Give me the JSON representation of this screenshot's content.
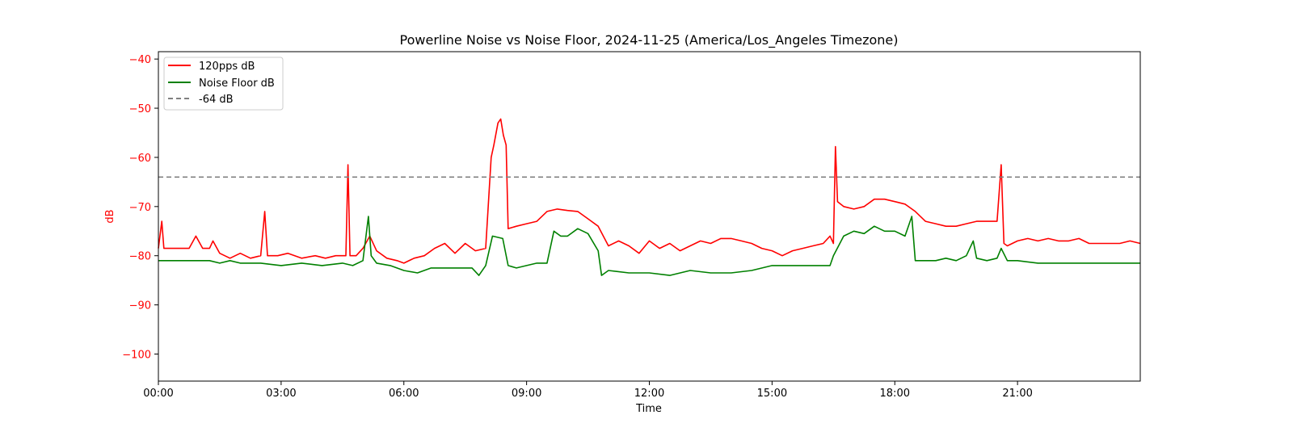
{
  "chart_data": {
    "type": "line",
    "title": "Powerline Noise vs Noise Floor, 2024-11-25 (America/Los_Angeles Timezone)",
    "xlabel": "Time",
    "ylabel": "dB",
    "xlim": [
      "00:00",
      "24:00"
    ],
    "ylim": [
      -105.5,
      -38.5
    ],
    "x_ticks": [
      "00:00",
      "03:00",
      "06:00",
      "09:00",
      "12:00",
      "15:00",
      "18:00",
      "21:00"
    ],
    "y_ticks": [
      -40,
      -50,
      -60,
      -70,
      -80,
      -90,
      -100
    ],
    "legend_position": "upper-left",
    "colors": {
      "ylabel": "#ff0000",
      "axis": "#000000"
    },
    "series": [
      {
        "name": "120pps dB",
        "color": "#ff0000",
        "style": "solid",
        "points": [
          [
            "00:00",
            -78.5
          ],
          [
            "00:05",
            -73
          ],
          [
            "00:08",
            -78.5
          ],
          [
            "00:30",
            -78.5
          ],
          [
            "00:45",
            -78.5
          ],
          [
            "00:55",
            -76
          ],
          [
            "01:05",
            -78.5
          ],
          [
            "01:15",
            -78.5
          ],
          [
            "01:20",
            -77
          ],
          [
            "01:30",
            -79.5
          ],
          [
            "01:45",
            -80.5
          ],
          [
            "02:00",
            -79.5
          ],
          [
            "02:15",
            -80.5
          ],
          [
            "02:30",
            -80
          ],
          [
            "02:36",
            -71
          ],
          [
            "02:40",
            -80
          ],
          [
            "02:55",
            -80
          ],
          [
            "03:10",
            -79.5
          ],
          [
            "03:30",
            -80.5
          ],
          [
            "03:50",
            -80
          ],
          [
            "04:05",
            -80.5
          ],
          [
            "04:20",
            -80
          ],
          [
            "04:35",
            -80
          ],
          [
            "04:38",
            -61.5
          ],
          [
            "04:41",
            -80
          ],
          [
            "04:50",
            -80
          ],
          [
            "05:00",
            -78.5
          ],
          [
            "05:10",
            -76
          ],
          [
            "05:20",
            -79
          ],
          [
            "05:35",
            -80.5
          ],
          [
            "05:50",
            -81
          ],
          [
            "06:00",
            -81.5
          ],
          [
            "06:15",
            -80.5
          ],
          [
            "06:30",
            -80
          ],
          [
            "06:45",
            -78.5
          ],
          [
            "07:00",
            -77.5
          ],
          [
            "07:15",
            -79.5
          ],
          [
            "07:30",
            -77.5
          ],
          [
            "07:45",
            -79
          ],
          [
            "08:00",
            -78.5
          ],
          [
            "08:08",
            -60
          ],
          [
            "08:12",
            -57.5
          ],
          [
            "08:18",
            -53
          ],
          [
            "08:22",
            -52.2
          ],
          [
            "08:26",
            -55.5
          ],
          [
            "08:30",
            -57.5
          ],
          [
            "08:33",
            -74.5
          ],
          [
            "08:45",
            -74
          ],
          [
            "09:00",
            -73.5
          ],
          [
            "09:15",
            -73
          ],
          [
            "09:30",
            -71
          ],
          [
            "09:45",
            -70.5
          ],
          [
            "10:00",
            -70.8
          ],
          [
            "10:15",
            -71
          ],
          [
            "10:30",
            -72.5
          ],
          [
            "10:45",
            -74
          ],
          [
            "11:00",
            -78
          ],
          [
            "11:15",
            -77
          ],
          [
            "11:30",
            -78
          ],
          [
            "11:45",
            -79.5
          ],
          [
            "12:00",
            -77
          ],
          [
            "12:15",
            -78.5
          ],
          [
            "12:30",
            -77.5
          ],
          [
            "12:45",
            -79
          ],
          [
            "13:00",
            -78
          ],
          [
            "13:15",
            -77
          ],
          [
            "13:30",
            -77.5
          ],
          [
            "13:45",
            -76.5
          ],
          [
            "14:00",
            -76.5
          ],
          [
            "14:15",
            -77
          ],
          [
            "14:30",
            -77.5
          ],
          [
            "14:45",
            -78.5
          ],
          [
            "15:00",
            -79
          ],
          [
            "15:15",
            -80
          ],
          [
            "15:30",
            -79
          ],
          [
            "15:45",
            -78.5
          ],
          [
            "16:00",
            -78
          ],
          [
            "16:15",
            -77.5
          ],
          [
            "16:25",
            -76
          ],
          [
            "16:30",
            -77.5
          ],
          [
            "16:33",
            -57.8
          ],
          [
            "16:36",
            -69
          ],
          [
            "16:45",
            -70
          ],
          [
            "17:00",
            -70.5
          ],
          [
            "17:15",
            -70
          ],
          [
            "17:30",
            -68.5
          ],
          [
            "17:45",
            -68.5
          ],
          [
            "18:00",
            -69
          ],
          [
            "18:15",
            -69.5
          ],
          [
            "18:30",
            -71
          ],
          [
            "18:45",
            -73
          ],
          [
            "19:00",
            -73.5
          ],
          [
            "19:15",
            -74
          ],
          [
            "19:30",
            -74
          ],
          [
            "19:45",
            -73.5
          ],
          [
            "20:00",
            -73
          ],
          [
            "20:15",
            -73
          ],
          [
            "20:30",
            -73
          ],
          [
            "20:36",
            -61.5
          ],
          [
            "20:40",
            -77.5
          ],
          [
            "20:45",
            -78
          ],
          [
            "21:00",
            -77
          ],
          [
            "21:15",
            -76.5
          ],
          [
            "21:30",
            -77
          ],
          [
            "21:45",
            -76.5
          ],
          [
            "22:00",
            -77
          ],
          [
            "22:15",
            -77
          ],
          [
            "22:30",
            -76.5
          ],
          [
            "22:45",
            -77.5
          ],
          [
            "23:00",
            -77.5
          ],
          [
            "23:15",
            -77.5
          ],
          [
            "23:30",
            -77.5
          ],
          [
            "23:45",
            -77
          ],
          [
            "24:00",
            -77.5
          ]
        ]
      },
      {
        "name": "Noise Floor dB",
        "color": "#008000",
        "style": "solid",
        "points": [
          [
            "00:00",
            -81
          ],
          [
            "00:30",
            -81
          ],
          [
            "01:00",
            -81
          ],
          [
            "01:15",
            -81
          ],
          [
            "01:30",
            -81.5
          ],
          [
            "01:45",
            -81
          ],
          [
            "02:00",
            -81.5
          ],
          [
            "02:30",
            -81.5
          ],
          [
            "03:00",
            -82
          ],
          [
            "03:30",
            -81.5
          ],
          [
            "04:00",
            -82
          ],
          [
            "04:30",
            -81.5
          ],
          [
            "04:45",
            -82
          ],
          [
            "05:00",
            -81
          ],
          [
            "05:08",
            -72
          ],
          [
            "05:12",
            -80
          ],
          [
            "05:20",
            -81.5
          ],
          [
            "05:40",
            -82
          ],
          [
            "06:00",
            -83
          ],
          [
            "06:20",
            -83.5
          ],
          [
            "06:40",
            -82.5
          ],
          [
            "07:00",
            -82.5
          ],
          [
            "07:20",
            -82.5
          ],
          [
            "07:40",
            -82.5
          ],
          [
            "07:50",
            -84
          ],
          [
            "08:00",
            -82
          ],
          [
            "08:10",
            -76
          ],
          [
            "08:25",
            -76.5
          ],
          [
            "08:33",
            -82
          ],
          [
            "08:45",
            -82.5
          ],
          [
            "09:00",
            -82
          ],
          [
            "09:15",
            -81.5
          ],
          [
            "09:30",
            -81.5
          ],
          [
            "09:40",
            -75
          ],
          [
            "09:50",
            -76
          ],
          [
            "10:00",
            -76
          ],
          [
            "10:15",
            -74.5
          ],
          [
            "10:30",
            -75.5
          ],
          [
            "10:45",
            -79
          ],
          [
            "10:50",
            -84
          ],
          [
            "11:00",
            -83
          ],
          [
            "11:30",
            -83.5
          ],
          [
            "12:00",
            -83.5
          ],
          [
            "12:30",
            -84
          ],
          [
            "13:00",
            -83
          ],
          [
            "13:30",
            -83.5
          ],
          [
            "14:00",
            -83.5
          ],
          [
            "14:30",
            -83
          ],
          [
            "15:00",
            -82
          ],
          [
            "15:30",
            -82
          ],
          [
            "16:00",
            -82
          ],
          [
            "16:25",
            -82
          ],
          [
            "16:30",
            -80
          ],
          [
            "16:45",
            -76
          ],
          [
            "17:00",
            -75
          ],
          [
            "17:15",
            -75.5
          ],
          [
            "17:30",
            -74
          ],
          [
            "17:45",
            -75
          ],
          [
            "18:00",
            -75
          ],
          [
            "18:15",
            -76
          ],
          [
            "18:25",
            -72
          ],
          [
            "18:30",
            -81
          ],
          [
            "18:45",
            -81
          ],
          [
            "19:00",
            -81
          ],
          [
            "19:15",
            -80.5
          ],
          [
            "19:30",
            -81
          ],
          [
            "19:45",
            -80
          ],
          [
            "19:55",
            -77
          ],
          [
            "20:00",
            -80.5
          ],
          [
            "20:15",
            -81
          ],
          [
            "20:30",
            -80.5
          ],
          [
            "20:36",
            -78.5
          ],
          [
            "20:45",
            -81
          ],
          [
            "21:00",
            -81
          ],
          [
            "21:30",
            -81.5
          ],
          [
            "22:00",
            -81.5
          ],
          [
            "22:30",
            -81.5
          ],
          [
            "23:00",
            -81.5
          ],
          [
            "23:30",
            -81.5
          ],
          [
            "24:00",
            -81.5
          ]
        ]
      },
      {
        "name": "-64 dB",
        "color": "#808080",
        "style": "dashed",
        "constant": -64
      }
    ]
  }
}
